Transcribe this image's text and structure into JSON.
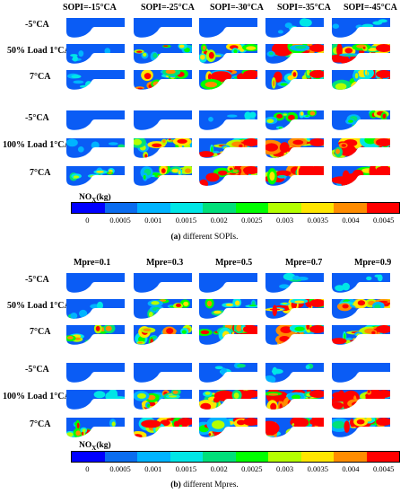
{
  "panel_a": {
    "columns": [
      "SOPI=-15°CA",
      "SOPI=-25°CA",
      "SOPI=-30°CA",
      "SOPI=-35°CA",
      "SOPI=-45°CA"
    ],
    "rows": [
      "-5°CA",
      "50% Load  1°CA",
      "7°CA",
      "-5°CA",
      "100% Load  1°CA",
      "7°CA"
    ],
    "legend_title": "NOX(kg)",
    "legend_ticks": [
      "0",
      "0.0005",
      "0.001",
      "0.0015",
      "0.002",
      "0.0025",
      "0.003",
      "0.0035",
      "0.004",
      "0.0045"
    ],
    "caption_tag": "(a)",
    "caption_text": " different SOPIs."
  },
  "panel_b": {
    "columns": [
      "Mpre=0.1",
      "Mpre=0.3",
      "Mpre=0.5",
      "Mpre=0.7",
      "Mpre=0.9"
    ],
    "rows": [
      "-5°CA",
      "50% Load  1°CA",
      "7°CA",
      "-5°CA",
      "100% Load  1°CA",
      "7°CA"
    ],
    "legend_title": "NOX(kg)",
    "legend_ticks": [
      "0",
      "0.0005",
      "0.001",
      "0.0015",
      "0.002",
      "0.0025",
      "0.003",
      "0.0035",
      "0.004",
      "0.0045"
    ],
    "caption_tag": "(b)",
    "caption_text": " different Mpres."
  },
  "colormap": [
    "#0000ff",
    "#0a6cf0",
    "#00b4ff",
    "#00e6e6",
    "#00e07a",
    "#00ff00",
    "#b4ff00",
    "#ffe600",
    "#ff8c00",
    "#ff0000"
  ]
}
